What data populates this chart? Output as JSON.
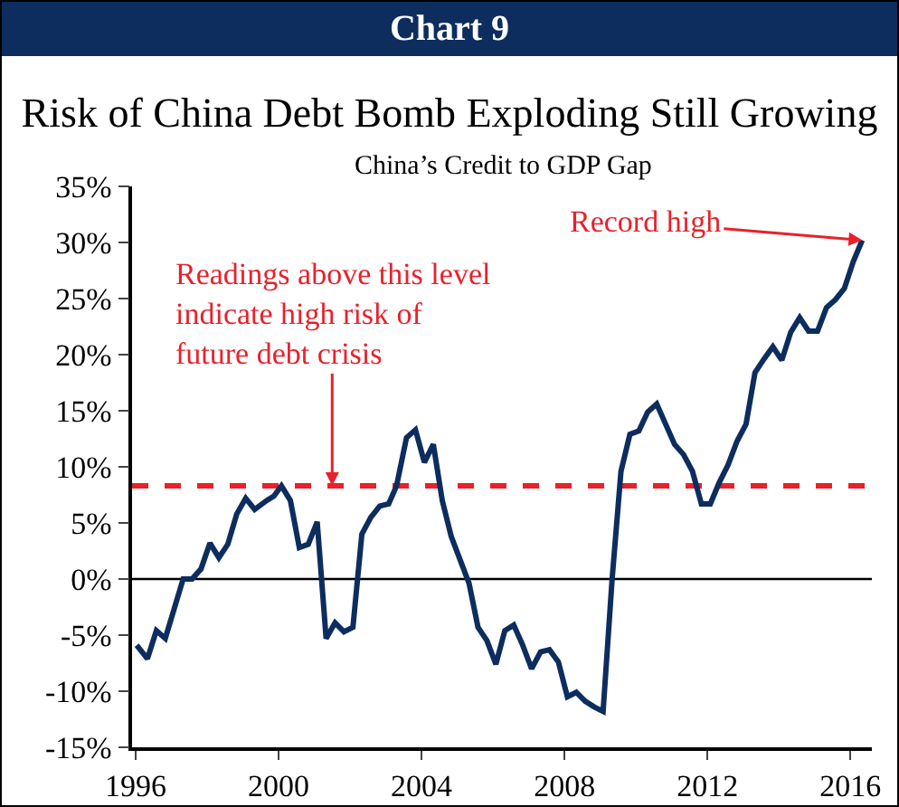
{
  "chart_data": {
    "type": "line",
    "title": "Risk of China Debt Bomb Exploding Still Growing",
    "subtitle": "China’s Credit to GDP Gap",
    "annotations": [
      "Chart 9",
      {
        "text": "Readings above this level indicate high risk of future debt crisis",
        "x": 2001.5,
        "y": 8.3
      },
      {
        "text": "Record high",
        "x": 2016.33,
        "y": 30.2
      }
    ],
    "x": [
      1996.03,
      1996.33,
      1996.58,
      1996.83,
      1997.33,
      1997.58,
      1997.83,
      1998.08,
      1998.33,
      1998.58,
      1998.83,
      1999.08,
      1999.33,
      1999.67,
      1999.87,
      2000.08,
      2000.33,
      2000.58,
      2000.83,
      2001.08,
      2001.33,
      2001.58,
      2001.83,
      2002.08,
      2002.33,
      2002.58,
      2002.83,
      2003.08,
      2003.3,
      2003.58,
      2003.83,
      2004.08,
      2004.33,
      2004.58,
      2004.83,
      2005.08,
      2005.33,
      2005.58,
      2005.83,
      2006.08,
      2006.33,
      2006.58,
      2006.83,
      2007.08,
      2007.33,
      2007.58,
      2007.83,
      2008.08,
      2008.33,
      2008.58,
      2008.83,
      2009.08,
      2009.33,
      2009.58,
      2009.83,
      2010.08,
      2010.33,
      2010.58,
      2010.83,
      2011.08,
      2011.33,
      2011.58,
      2011.83,
      2012.08,
      2012.33,
      2012.58,
      2012.83,
      2013.08,
      2013.33,
      2013.58,
      2013.83,
      2014.08,
      2014.33,
      2014.58,
      2014.83,
      2015.08,
      2015.33,
      2015.58,
      2015.83,
      2016.08,
      2016.33
    ],
    "series": [
      {
        "color": "#0d2d5e",
        "values": [
          -5.9,
          -7.1,
          -4.6,
          -5.3,
          0,
          0,
          0.9,
          3.2,
          1.9,
          3.1,
          5.8,
          7.2,
          6.2,
          7.0,
          7.4,
          8.3,
          7.0,
          2.8,
          3.1,
          5.1,
          -5.3,
          -3.9,
          -4.7,
          -4.3,
          4.0,
          5.5,
          6.5,
          6.7,
          8.3,
          12.6,
          13.3,
          10.4,
          12.0,
          7.0,
          3.8,
          1.7,
          -0.4,
          -4.3,
          -5.5,
          -7.6,
          -4.6,
          -4.1,
          -5.9,
          -8.0,
          -6.5,
          -6.3,
          -7.4,
          -10.5,
          -10.1,
          -10.9,
          -11.4,
          -11.8,
          -0.1,
          9.6,
          12.9,
          13.2,
          14.9,
          15.6,
          13.8,
          12.0,
          11.1,
          9.6,
          6.7,
          6.7,
          8.6,
          10.2,
          12.3,
          13.8,
          18.4,
          19.6,
          20.7,
          19.5,
          22.0,
          23.3,
          22.1,
          22.1,
          24.2,
          24.9,
          25.9,
          28.3,
          30.2
        ]
      }
    ],
    "xlim": [
      1995.9,
      2016.6
    ],
    "xticks": [
      1996,
      2000,
      2004,
      2008,
      2012,
      2016
    ],
    "ylim": [
      -15,
      35
    ],
    "yticks": [
      {
        "value": -15,
        "label": "-15%"
      },
      {
        "value": -10,
        "label": "-10%"
      },
      {
        "value": -5,
        "label": "-5%"
      },
      {
        "value": 0,
        "label": "0%"
      },
      {
        "value": 5,
        "label": "5%"
      },
      {
        "value": 10,
        "label": "10%"
      },
      {
        "value": 15,
        "label": "15%"
      },
      {
        "value": 20,
        "label": "20%"
      },
      {
        "value": 25,
        "label": "25%"
      },
      {
        "value": 30,
        "label": "30%"
      },
      {
        "value": 35,
        "label": "35%"
      }
    ],
    "ref_lines": [
      {
        "axis": "y",
        "value": 8.3,
        "color": "#e8212b",
        "line_style": "dashed"
      },
      {
        "axis": "y",
        "value": 0,
        "color": "#000000",
        "line_style": "solid"
      }
    ],
    "grid": false,
    "marker": "none",
    "line_style": "solid"
  }
}
